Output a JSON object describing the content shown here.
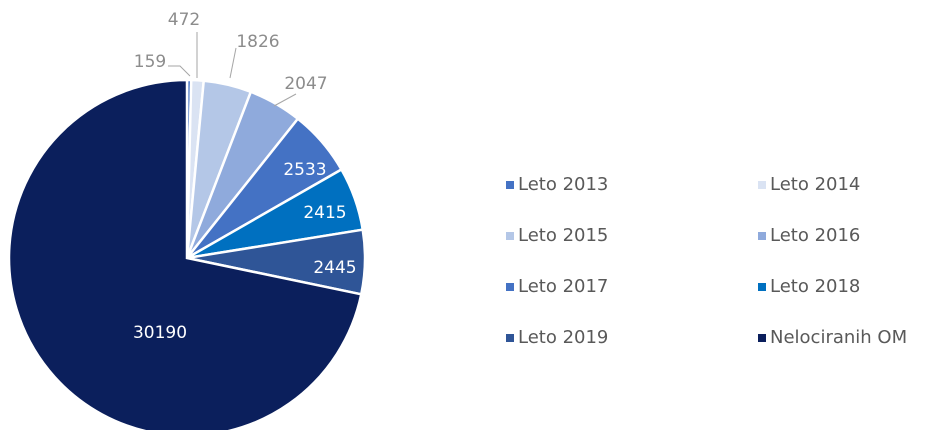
{
  "chart_data": {
    "type": "pie",
    "categories": [
      "Leto 2013",
      "Leto 2014",
      "Leto 2015",
      "Leto 2016",
      "Leto 2017",
      "Leto 2018",
      "Leto 2019",
      "Nelociranih OM"
    ],
    "values": [
      159,
      472,
      1826,
      2047,
      2533,
      2415,
      2445,
      30190
    ],
    "colors": [
      "#4472c4",
      "#dae3f3",
      "#b4c7e7",
      "#8faadc",
      "#4472c4",
      "#0070c0",
      "#2f5597",
      "#0b1f5c"
    ]
  }
}
